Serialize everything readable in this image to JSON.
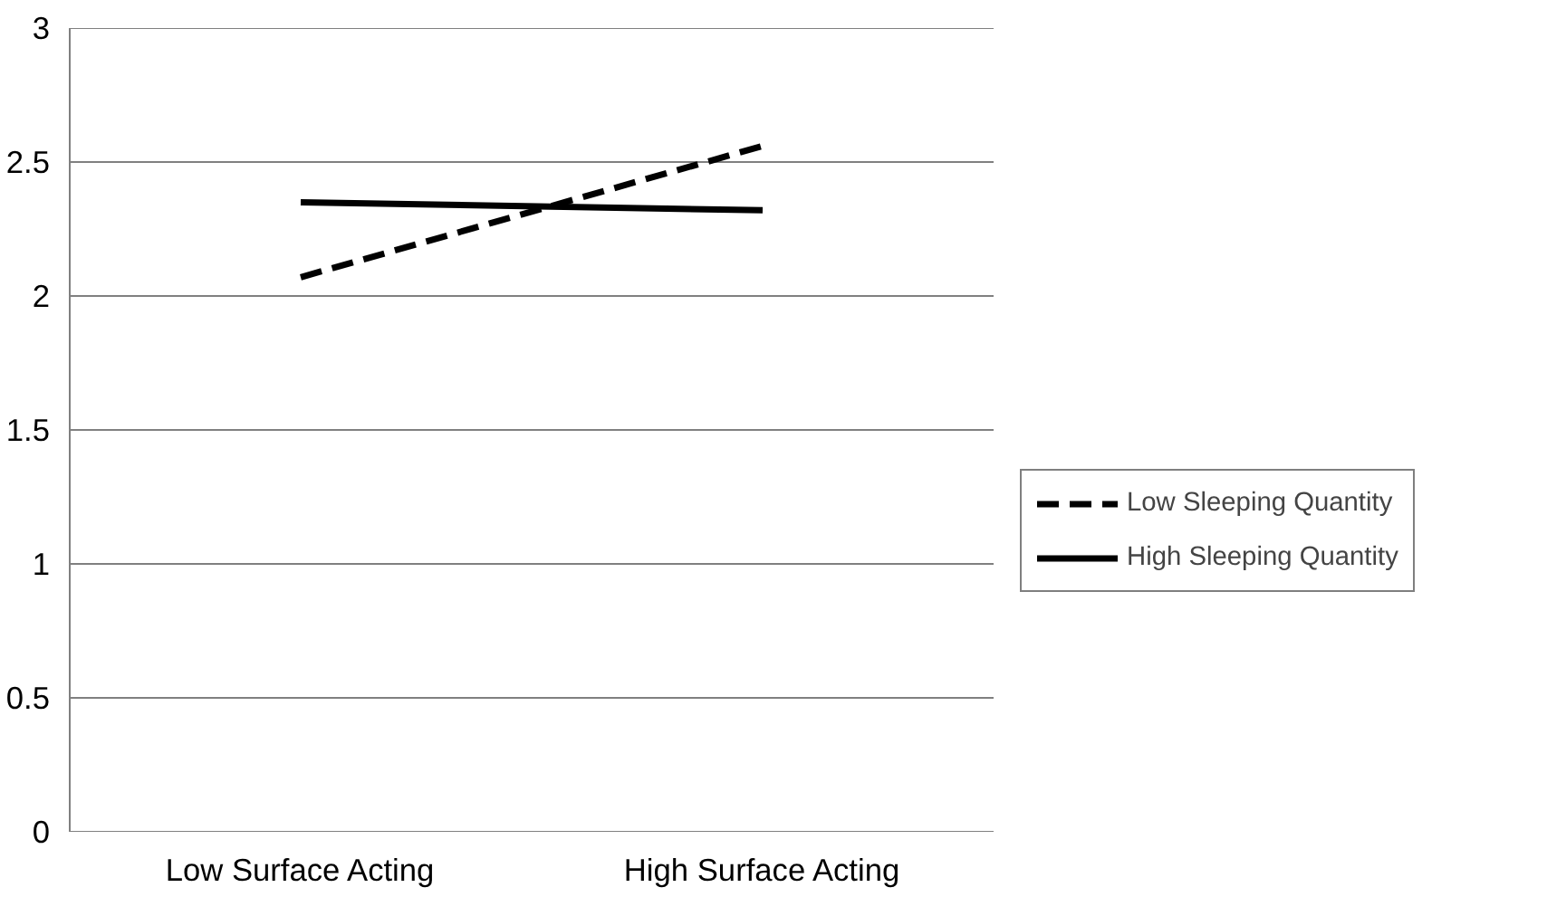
{
  "chart_data": {
    "type": "line",
    "categories": [
      "Low Surface Acting",
      "High Surface Acting"
    ],
    "series": [
      {
        "name": "Low Sleeping Quantity",
        "color": "#000000",
        "values": [
          2.07,
          2.56
        ],
        "line_style": "dashed"
      },
      {
        "name": "High Sleeping Quantity",
        "color": "#000000",
        "values": [
          2.35,
          2.32
        ],
        "line_style": "solid"
      }
    ],
    "ylim": [
      0,
      3
    ],
    "yticks": [
      0,
      0.5,
      1,
      1.5,
      2,
      2.5,
      3
    ],
    "grid": "y",
    "legend": "right"
  }
}
